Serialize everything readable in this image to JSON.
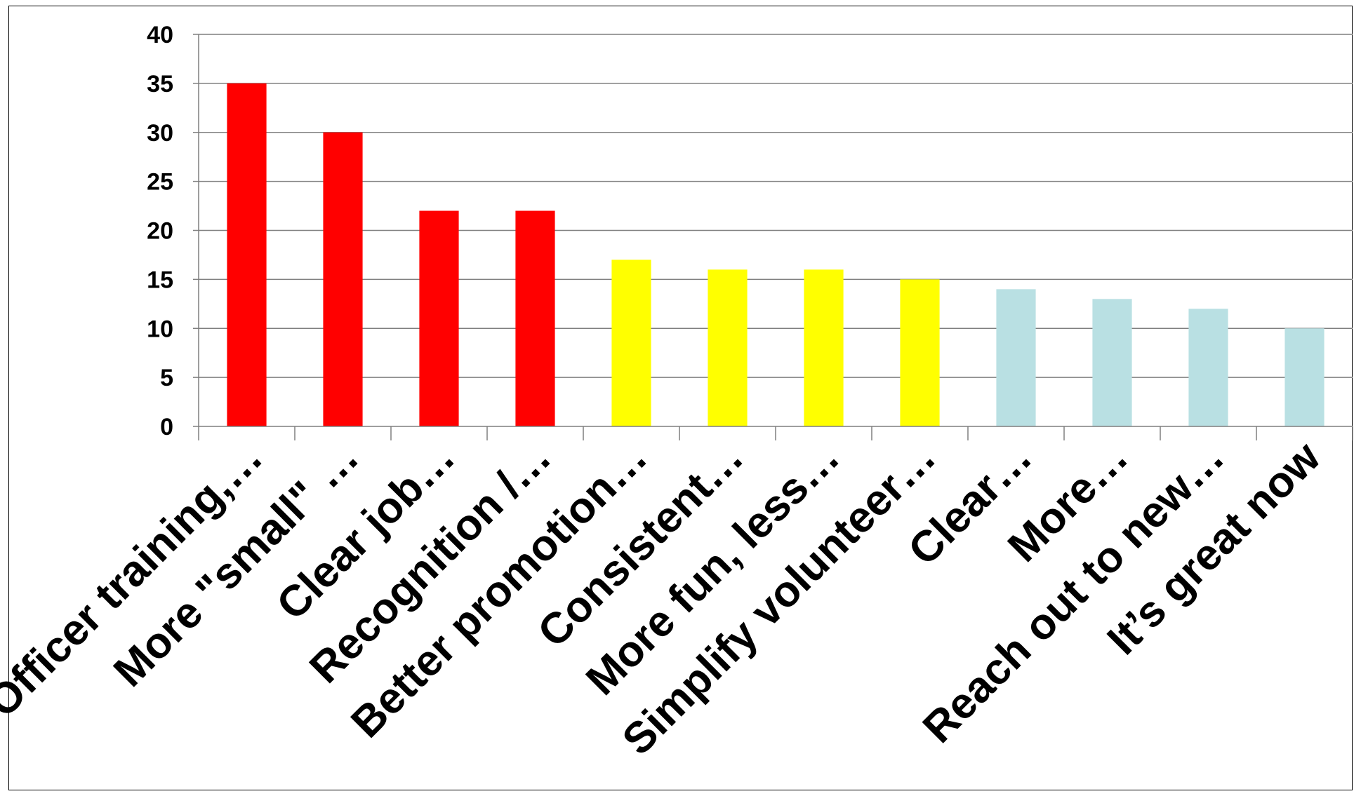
{
  "chart_data": {
    "type": "bar",
    "categories": [
      "Officer training,…",
      "More \"small\" …",
      "Clear job…",
      "Recognition /…",
      "Better promotion…",
      "Consistent…",
      "More fun, less…",
      "Simplify volunteer…",
      "Clear…",
      "More…",
      "Reach out to new…",
      "It’s great now"
    ],
    "values": [
      35,
      30,
      22,
      22,
      17,
      16,
      16,
      15,
      14,
      13,
      12,
      10
    ],
    "bar_colors": [
      "#ff0000",
      "#ff0000",
      "#ff0000",
      "#ff0000",
      "#ffff00",
      "#ffff00",
      "#ffff00",
      "#ffff00",
      "#b9e0e3",
      "#b9e0e3",
      "#b9e0e3",
      "#b9e0e3"
    ],
    "ylim": [
      0,
      40
    ],
    "yticks": [
      "0",
      "5",
      "10",
      "15",
      "20",
      "25",
      "30",
      "35",
      "40"
    ],
    "grid": true,
    "title": "",
    "xlabel": "",
    "ylabel": ""
  }
}
